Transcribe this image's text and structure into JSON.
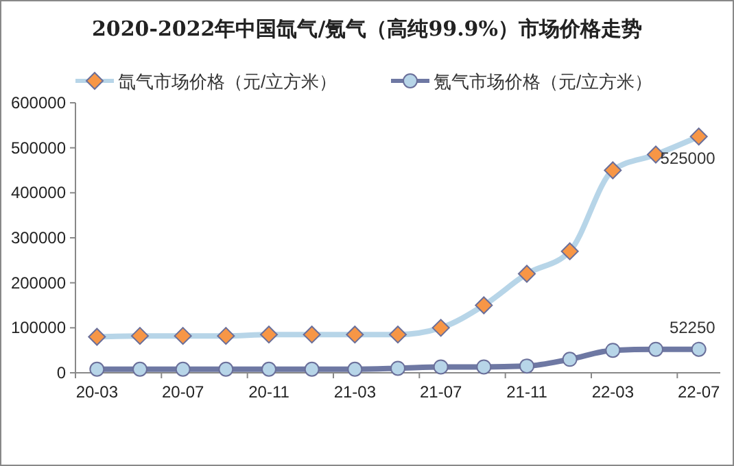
{
  "chart_data": {
    "type": "line",
    "title": "2020-2022年中国氙气/氪气（高纯99.9%）市场价格走势",
    "categories": [
      "20-03",
      null,
      "20-07",
      null,
      "20-11",
      null,
      "21-03",
      null,
      "21-07",
      null,
      "21-11",
      null,
      "22-03",
      null,
      "22-07"
    ],
    "series": [
      {
        "name": "氙气市场价格（元/立方米）",
        "color": "#b7d5e8",
        "marker": "diamond",
        "values": [
          80000,
          82000,
          82000,
          82000,
          85000,
          85000,
          85000,
          85000,
          100000,
          150000,
          220000,
          270000,
          450000,
          485000,
          525000
        ],
        "value_labels": [
          null,
          null,
          null,
          null,
          null,
          null,
          null,
          null,
          null,
          null,
          null,
          null,
          null,
          null,
          "525000"
        ]
      },
      {
        "name": "氪气市场价格（元/立方米）",
        "color": "#6e78a3",
        "marker": "circle",
        "values": [
          8000,
          8000,
          8000,
          8000,
          8000,
          8000,
          8000,
          10000,
          13000,
          13000,
          15000,
          30000,
          50000,
          52250,
          52250
        ],
        "value_labels": [
          null,
          null,
          null,
          null,
          null,
          null,
          null,
          null,
          null,
          null,
          null,
          null,
          null,
          null,
          "52250"
        ]
      }
    ],
    "ylim": [
      0,
      600000
    ],
    "yticks": [
      0,
      100000,
      200000,
      300000,
      400000,
      500000,
      600000
    ],
    "grid": false,
    "legend": "top"
  }
}
